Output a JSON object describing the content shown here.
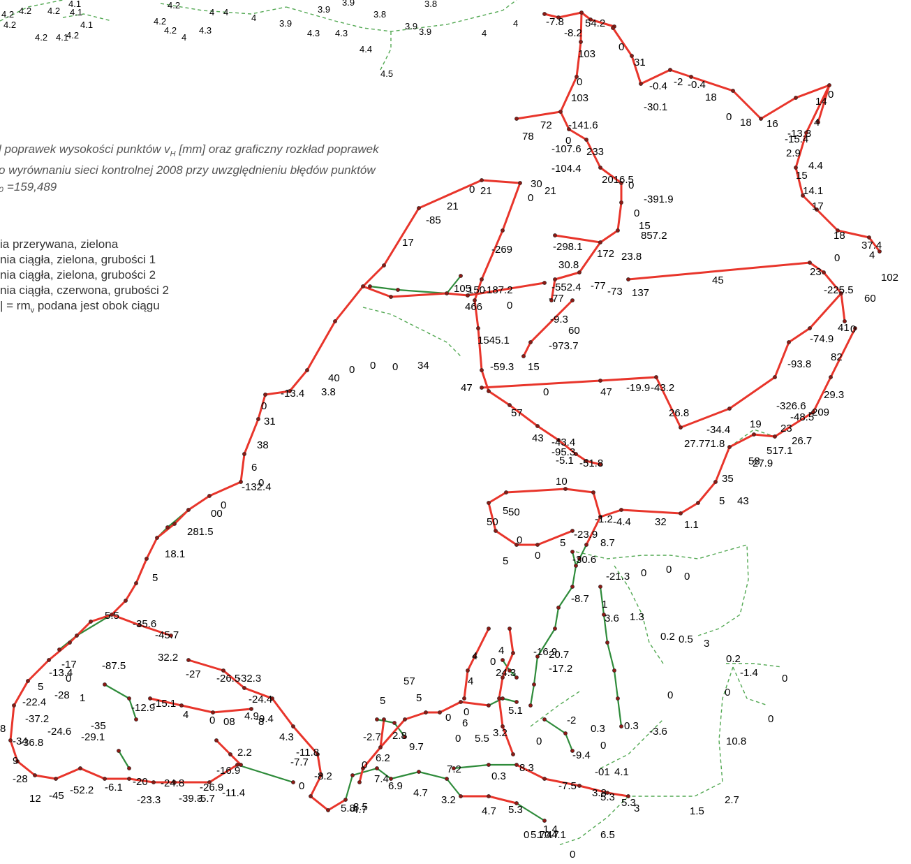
{
  "figure": {
    "caption_lines": [
      "l poprawek wysokości punktów v",
      "o wyrównaniu sieci kontrolnej 2008 przy uwzględnieniu błędów punktów",
      "₀ =159,489"
    ],
    "caption_subscript": "H",
    "caption_unit": " [mm] oraz graficzny rozkład poprawek",
    "legend_lines": [
      "ia przerywana, zielona",
      "nia ciągła, zielona, grubości 1",
      "nia ciągła, zielona, grubości 2",
      "nia ciągła, czerwona, grubości 2",
      "| = rm",
      " podana jest obok ciągu"
    ],
    "legend_sub": "v"
  },
  "colors": {
    "red": "#e8352b",
    "green_dark": "#2e8b3a",
    "green_light": "#52a852",
    "text": "#000000",
    "caption": "#555555"
  },
  "top_values": [
    "4.2",
    "4.2",
    "4.2",
    "4.1",
    "4.1",
    "4.2",
    "4.2",
    "4.1",
    "4.2",
    "4.1",
    "4.2",
    "4.2",
    "4.2",
    "4.3",
    "4",
    "4",
    "4",
    "4",
    "3.9",
    "3.9",
    "3.9",
    "3.8",
    "3.9",
    "3.9",
    "4",
    "4",
    "4.3",
    "4.3",
    "4.4",
    "4.5",
    "3.8"
  ],
  "labels": [
    "-7.8",
    "-8.2",
    "54.2",
    "103",
    "0",
    "31",
    "0",
    "103",
    "-0.4",
    "-2",
    "-0.4",
    "-30.1",
    "18",
    "0",
    "18",
    "16",
    "-13.3",
    "14",
    "0",
    "4",
    "-15.4",
    "2.9",
    "4.4",
    "15",
    "14.1",
    "17",
    "72",
    "-141.6",
    "0",
    "78",
    "-107.6",
    "233",
    "-104.4",
    "30",
    "2016.5",
    "0",
    "-391.9",
    "21",
    "0",
    "21",
    "0",
    "21",
    "-85",
    "17",
    "0",
    "15",
    "857.2",
    "-269",
    "-298.1",
    "172",
    "23.8",
    "30.8",
    "18",
    "37.4",
    "4",
    "102",
    "0",
    "45",
    "23",
    "-225.5",
    "60",
    "-552.4",
    "-73",
    "137",
    "150",
    "-77",
    "-77",
    "105",
    "-187.2",
    "0",
    "-9.3",
    "60",
    "41",
    "-74.9",
    "0",
    "466",
    "1545.1",
    "-973.7",
    "15",
    "-93.8",
    "82",
    "29.3",
    "-59.3",
    "47",
    "0",
    "47",
    "-19.9",
    "-43.2",
    "40",
    "0",
    "0",
    "0",
    "34",
    "3.8",
    "-13.4",
    "0",
    "31",
    "38",
    "26.8",
    "-326.6",
    "19",
    "-209",
    "-48.5",
    "23",
    "-34.4",
    "27.771.8",
    "26.7",
    "517.1",
    "58",
    "27.9",
    "35",
    "5",
    "43",
    "57",
    "43",
    "-43.4",
    "-95.3",
    "-5.1",
    "-51.8",
    "10",
    "6",
    "-132.4",
    "0",
    "00",
    "0",
    "281.5",
    "18.1",
    "5",
    "50",
    "50",
    "5",
    "0",
    "5",
    "0",
    "5",
    "-1.2",
    "-4.4",
    "32",
    "1.1",
    "-23.9",
    "8.7",
    "-30.6",
    "-21.3",
    "0",
    "0",
    "0",
    "-8.7",
    "1",
    "3.6",
    "1.3",
    "0.2",
    "0.5",
    "3",
    "0.2",
    "-1.4",
    "0",
    "0",
    "0",
    "0",
    "0.3",
    "-3.6",
    "10.8",
    "0.3",
    "0",
    "4.1",
    "2.7",
    "1.5",
    "3",
    "5.3",
    "3.8",
    "-7.5",
    "1.4",
    "6.5",
    "0",
    "5.5",
    "-35.6",
    "-45.7",
    "32.2",
    "-17",
    "-87.5",
    "-13.4",
    "5",
    "0",
    "-28",
    "1",
    "-35",
    "-27",
    "-26.5",
    "-32.3",
    "-24.4",
    "4.9",
    "-9.4",
    "-12.9",
    "-15.1",
    "4",
    "0",
    "08",
    "8",
    "4.3",
    "-29.1",
    "-36.8",
    "-24.6",
    "-37.2",
    "-22.4",
    "-34",
    "8",
    "9",
    "-28",
    "12",
    "-45",
    "-52.2",
    "-6.1",
    "-20",
    "-24.8",
    "-26.9",
    "-11.4",
    "-23.3",
    "-39.3",
    "-5.7",
    "2.2",
    "-16.9",
    "-11.8",
    "-8.2",
    "-7.7",
    "0",
    "5.8",
    "-4.7",
    "8.5",
    "7.4",
    "6.9",
    "4.7",
    "3.2",
    "4.7",
    "5.3",
    "7.2",
    "0.3",
    "8.3",
    "-2.7",
    "2.8",
    "9.7",
    "6.2",
    "0",
    "5",
    "57",
    "5",
    "4",
    "0",
    "0",
    "6",
    "0",
    "5.5",
    "3.2",
    "5.1",
    "4",
    "4",
    "0",
    "24.3",
    "-16.9",
    "20.7",
    "-17.2",
    "-2",
    "0",
    "-9.4",
    "-01",
    "5.3",
    "0",
    "5.7",
    "1.4",
    "0.7",
    "4.1"
  ]
}
